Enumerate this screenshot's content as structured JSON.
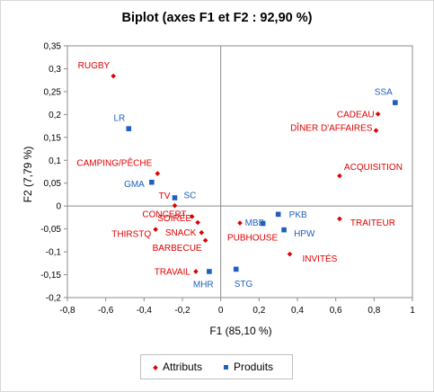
{
  "chart_data": {
    "type": "scatter",
    "title": "Biplot (axes F1 et F2 : 92,90 %)",
    "xlabel": "F1 (85,10 %)",
    "ylabel": "F2 (7,79 %)",
    "xlim": [
      -0.8,
      1
    ],
    "ylim": [
      -0.2,
      0.35
    ],
    "x_ticks": [
      "-0,8",
      "-0,6",
      "-0,4",
      "-0,2",
      "0",
      "0,2",
      "0,4",
      "0,6",
      "0,8",
      "1"
    ],
    "y_ticks": [
      "-0,2",
      "-0,15",
      "-0,1",
      "-0,05",
      "0",
      "0,05",
      "0,1",
      "0,15",
      "0,2",
      "0,25",
      "0,3",
      "0,35"
    ],
    "grid": false,
    "legend_position": "bottom",
    "series": [
      {
        "name": "Attributs",
        "color": "#e00000",
        "marker": "diamond",
        "points": [
          {
            "label": "RUGBY",
            "x": -0.56,
            "y": 0.284
          },
          {
            "label": "CAMPING/PÊCHE",
            "x": -0.33,
            "y": 0.071
          },
          {
            "label": "TV",
            "x": -0.24,
            "y": 0.001
          },
          {
            "label": "CONCERT",
            "x": -0.15,
            "y": -0.023
          },
          {
            "label": "SOIRÉE",
            "x": -0.12,
            "y": -0.036
          },
          {
            "label": "THIRSTQ",
            "x": -0.34,
            "y": -0.051
          },
          {
            "label": "SNACK",
            "x": -0.1,
            "y": -0.058
          },
          {
            "label": "BARBECUE",
            "x": -0.08,
            "y": -0.075
          },
          {
            "label": "TRAVAIL",
            "x": -0.13,
            "y": -0.143
          },
          {
            "label": "CADEAU",
            "x": 0.82,
            "y": 0.201
          },
          {
            "label": "DÎNER D'AFFAIRES",
            "x": 0.81,
            "y": 0.165
          },
          {
            "label": "ACQUISITION",
            "x": 0.62,
            "y": 0.066
          },
          {
            "label": "TRAITEUR",
            "x": 0.62,
            "y": -0.028
          },
          {
            "label": "PUBHOUSE",
            "x": 0.1,
            "y": -0.037
          },
          {
            "label": "INVITÉS",
            "x": 0.36,
            "y": -0.105
          }
        ]
      },
      {
        "name": "Produits",
        "color": "#1f5fbf",
        "marker": "square",
        "points": [
          {
            "label": "LR",
            "x": -0.48,
            "y": 0.169
          },
          {
            "label": "GMA",
            "x": -0.36,
            "y": 0.052
          },
          {
            "label": "SC",
            "x": -0.24,
            "y": 0.018
          },
          {
            "label": "MHR",
            "x": -0.06,
            "y": -0.143
          },
          {
            "label": "STG",
            "x": 0.08,
            "y": -0.138
          },
          {
            "label": "MBB",
            "x": 0.22,
            "y": -0.038
          },
          {
            "label": "PKB",
            "x": 0.3,
            "y": -0.018
          },
          {
            "label": "HPW",
            "x": 0.33,
            "y": -0.052
          },
          {
            "label": "SSA",
            "x": 0.91,
            "y": 0.226
          }
        ]
      }
    ]
  }
}
